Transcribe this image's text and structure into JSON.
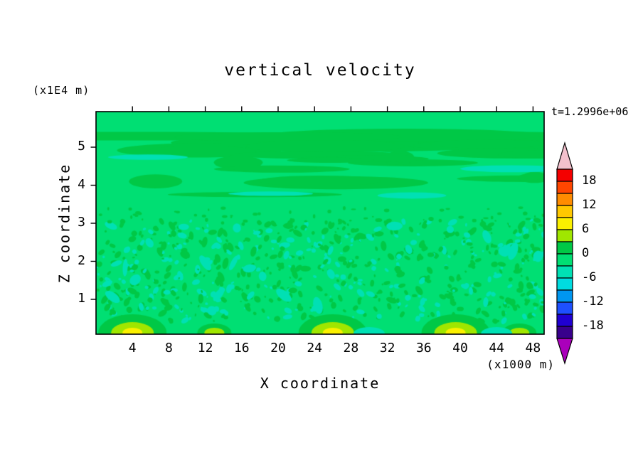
{
  "figure": {
    "title": "vertical velocity",
    "time_label": "t=1.2996e+06",
    "x_axis_label": "X coordinate",
    "y_axis_label": "Z coordinate",
    "x_units_label": "(x1000 m)",
    "y_units_label": "(x1E4 m)"
  },
  "chart_data": {
    "type": "heatmap",
    "subtype": "filled-contour",
    "title": "vertical velocity",
    "xlabel": "X coordinate",
    "ylabel": "Z coordinate",
    "x_units": "x1000 m",
    "y_units": "x1E4 m",
    "time_annotation": "t=1.2996e+06",
    "xlim": [
      0,
      49.2
    ],
    "ylim": [
      0,
      5.85
    ],
    "x_ticks": [
      4,
      8,
      12,
      16,
      20,
      24,
      28,
      32,
      36,
      40,
      44,
      48
    ],
    "y_ticks": [
      1,
      2,
      3,
      4,
      5
    ],
    "grid": false,
    "legend_position": "right-colorbar",
    "contour_interval": 3,
    "contour_levels": [
      -21,
      -18,
      -15,
      -12,
      -9,
      -6,
      -3,
      0,
      3,
      6,
      9,
      12,
      15,
      18,
      21
    ],
    "colorbar": {
      "tick_labels": [
        "18",
        "12",
        "6",
        "0",
        "-6",
        "-12",
        "-18"
      ],
      "segment_colors_top_to_bottom": [
        "#f40000",
        "#ff4600",
        "#ff8c00",
        "#ffc800",
        "#fbf000",
        "#a0e600",
        "#00c846",
        "#00df73",
        "#00e0b4",
        "#00dce0",
        "#0096f0",
        "#1e50ff",
        "#2000d2",
        "#38008c"
      ],
      "over_arrow_color": "#f2c0cc",
      "under_arrow_color": "#aa00bb"
    },
    "field": {
      "background_band": "-3 to 0",
      "base_color": "#00df73",
      "speckle_color": "#00c846",
      "negative_patch_color": "#00e0b4",
      "cyan_color": "#00dce0",
      "hotspot_ring_color": "#a0e600",
      "hotspot_core_color": "#fbf000",
      "surface_hotspots_x": [
        4,
        13,
        26,
        39.5,
        46.5
      ],
      "surface_hotspot_peak_band": "6 to 9",
      "surface_negative_patches_x": [
        30,
        44
      ],
      "description": "Field is near zero everywhere (green -3..0 band). Fine-grained speckle of 0..3 (darker green) and -6..-3 (turquoise) patches below z~3x1E4 m; smooth elongated horizontal 0..3 bands aloft (z 3-5.8); positive updraft hotspots reaching the 6..9 band (chartreuse ring, yellow core) near the surface at x~4, 26 and 39.5 (x1000 m), weaker ones at x~13 and 46.5; small negative turquoise patches near the surface at x~30 and 44."
    }
  }
}
